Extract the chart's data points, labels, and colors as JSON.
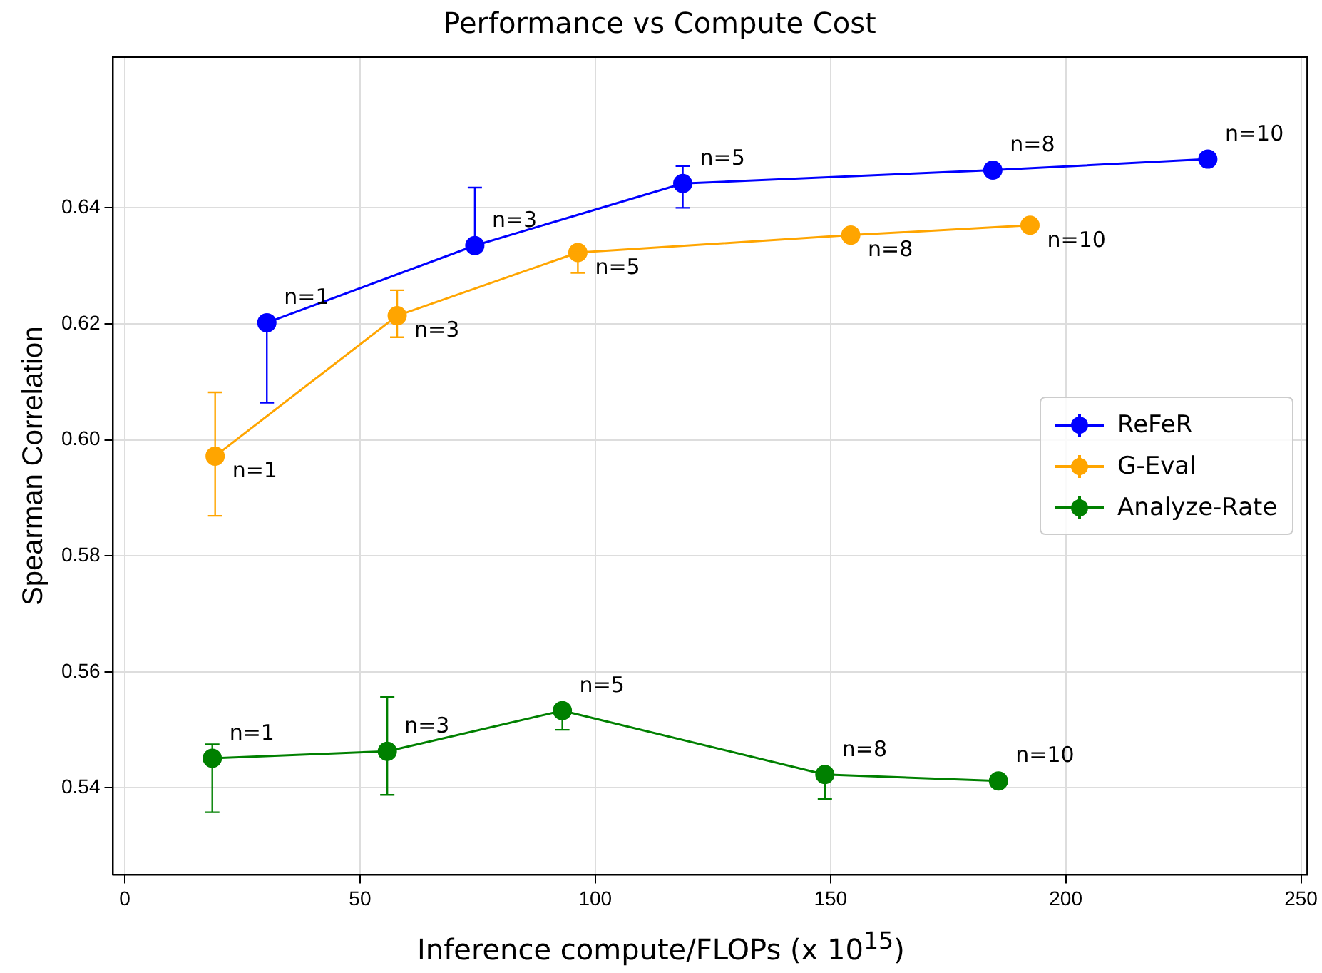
{
  "chart_data": {
    "type": "line",
    "title": "Performance vs Compute Cost",
    "xlabel": "Inference compute/FLOPs (x 10$^{15}$)",
    "ylabel": "Spearman Correlation",
    "xlim": [
      -2.5,
      251.3
    ],
    "xticks": [
      0,
      50,
      100,
      150,
      200,
      250
    ],
    "ylim": [
      0.525,
      0.666
    ],
    "yticks": [
      0.54,
      0.56,
      0.58,
      {
        "value": 0.6,
        "label": "0.60"
      },
      0.62,
      0.64
    ],
    "grid": true,
    "legend": "right",
    "marker": "circle",
    "line_style": "solid",
    "series": [
      {
        "name": "ReFeR",
        "color": "#0000ff",
        "x": [
          30.2,
          74.4,
          118.6,
          184.5,
          230.2
        ],
        "values": [
          0.6202,
          0.6335,
          0.6442,
          0.6465,
          0.6484
        ],
        "errors": [
          [
            0.6064,
            0.6205
          ],
          [
            0.6335,
            0.6435
          ],
          [
            0.64,
            0.6472
          ],
          [
            0.6456,
            0.6475
          ],
          null
        ]
      },
      {
        "name": "G-Eval",
        "color": "#ffa500",
        "x": [
          19.2,
          57.9,
          96.3,
          154.3,
          192.4
        ],
        "values": [
          0.5972,
          0.6214,
          0.6323,
          0.6353,
          0.637
        ],
        "errors": [
          [
            0.5869,
            0.6082
          ],
          [
            0.6177,
            0.6258
          ],
          [
            0.6288,
            0.6323
          ],
          [
            0.6344,
            0.6363
          ],
          null
        ]
      },
      {
        "name": "Analyze-Rate",
        "color": "#008000",
        "x": [
          18.6,
          55.8,
          93.0,
          148.8,
          185.7
        ],
        "values": [
          0.5451,
          0.5463,
          0.5533,
          0.5423,
          0.5412
        ],
        "errors": [
          [
            0.5358,
            0.5475
          ],
          [
            0.5388,
            0.5557
          ],
          [
            0.55,
            0.5533
          ],
          [
            0.5381,
            0.5423
          ],
          null
        ]
      }
    ],
    "annotations": [
      {
        "text": "n=1",
        "x": 30.2,
        "y": 0.6202
      },
      {
        "text": "n=3",
        "x": 74.4,
        "y": 0.6335
      },
      {
        "text": "n=5",
        "x": 118.6,
        "y": 0.6442
      },
      {
        "text": "n=8",
        "x": 184.5,
        "y": 0.6465
      },
      {
        "text": "n=10",
        "x": 230.2,
        "y": 0.6484
      },
      {
        "text": "n=1",
        "x": 19.2,
        "y": 0.5972
      },
      {
        "text": "n=3",
        "x": 57.9,
        "y": 0.6214
      },
      {
        "text": "n=5",
        "x": 96.3,
        "y": 0.6323
      },
      {
        "text": "n=8",
        "x": 154.3,
        "y": 0.6353
      },
      {
        "text": "n=10",
        "x": 192.4,
        "y": 0.637
      },
      {
        "text": "n=1",
        "x": 18.6,
        "y": 0.5451
      },
      {
        "text": "n=3",
        "x": 55.8,
        "y": 0.5463
      },
      {
        "text": "n=5",
        "x": 93.0,
        "y": 0.5533
      },
      {
        "text": "n=8",
        "x": 148.8,
        "y": 0.5423
      },
      {
        "text": "n=10",
        "x": 185.7,
        "y": 0.5412
      }
    ]
  }
}
